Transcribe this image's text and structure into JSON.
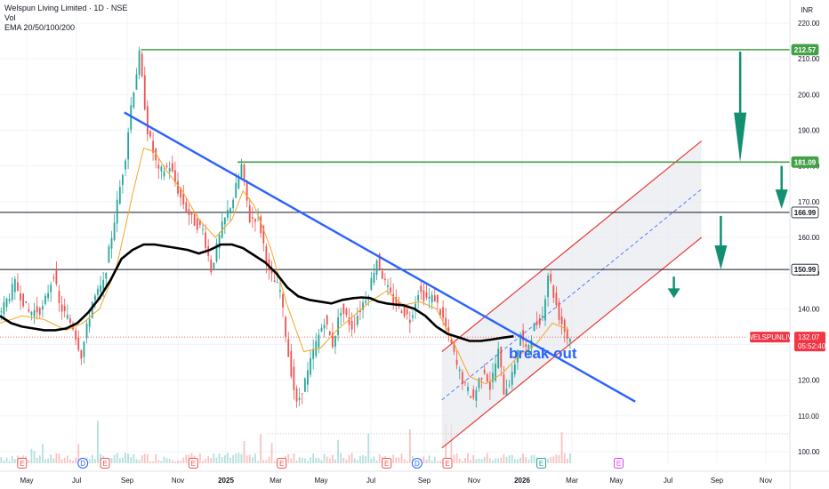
{
  "legend": {
    "title": "Welspun Living Limited · 1D · NSE",
    "volume": "Vol",
    "ema": "EMA 20/50/100/200"
  },
  "currency": "INR",
  "colors": {
    "up": "#26a69a",
    "down": "#ef5350",
    "trendline": "#2962ff",
    "resistance": "#43a047",
    "support_line": "#131722",
    "channel": "#e53935",
    "channel_fill": "#e9ebf0",
    "ema_fast": "#f5a623",
    "ema_slow": "#000000",
    "arrow": "#138f72",
    "last_price_bg": "#f23645"
  },
  "symbol_tag": {
    "label": "WELSPUNLIV",
    "price": "132.07",
    "countdown": "05:52:40"
  },
  "annotation": "break out",
  "chart_data": {
    "type": "candlestick",
    "y_axis": {
      "ylim": [
        97,
        223
      ],
      "ticks": [
        100,
        110,
        120,
        130,
        140,
        150,
        160,
        170,
        180,
        190,
        200,
        210,
        220
      ],
      "tick_labels": [
        "100.00",
        "110.00",
        "120.00",
        "130.00",
        "140.00",
        "150.00",
        "160.00",
        "170.00",
        "180.00",
        "190.00",
        "200.00",
        "210.00",
        "220.00"
      ]
    },
    "x_axis": {
      "labels": [
        "May",
        "Jul",
        "Sep",
        "Nov",
        "2025",
        "Mar",
        "May",
        "Jul",
        "Sep",
        "Nov",
        "2026",
        "Mar",
        "May",
        "Jul",
        "Sep",
        "Nov"
      ],
      "bold": [
        "2025",
        "2026"
      ]
    },
    "price_path": [
      [
        0,
        138
      ],
      [
        6,
        147
      ],
      [
        11,
        139
      ],
      [
        16,
        140
      ],
      [
        20,
        150
      ],
      [
        22,
        141
      ],
      [
        27,
        135
      ],
      [
        30,
        127
      ],
      [
        34,
        142
      ],
      [
        38,
        147
      ],
      [
        42,
        165
      ],
      [
        46,
        183
      ],
      [
        48,
        197
      ],
      [
        51,
        211
      ],
      [
        54,
        190
      ],
      [
        58,
        178
      ],
      [
        62,
        180
      ],
      [
        66,
        171
      ],
      [
        70,
        165
      ],
      [
        74,
        162
      ],
      [
        77,
        151
      ],
      [
        81,
        163
      ],
      [
        85,
        171
      ],
      [
        88,
        180
      ],
      [
        91,
        165
      ],
      [
        94,
        166
      ],
      [
        98,
        150
      ],
      [
        102,
        145
      ],
      [
        105,
        127
      ],
      [
        108,
        113
      ],
      [
        112,
        122
      ],
      [
        114,
        128
      ],
      [
        118,
        137
      ],
      [
        121,
        130
      ],
      [
        124,
        140
      ],
      [
        128,
        135
      ],
      [
        131,
        140
      ],
      [
        134,
        145
      ],
      [
        137,
        154
      ],
      [
        140,
        147
      ],
      [
        143,
        142
      ],
      [
        146,
        140
      ],
      [
        149,
        137
      ],
      [
        152,
        145
      ],
      [
        155,
        143
      ],
      [
        158,
        143
      ],
      [
        161,
        137
      ],
      [
        164,
        130
      ],
      [
        166,
        124
      ],
      [
        169,
        118
      ],
      [
        172,
        115
      ],
      [
        174,
        120
      ],
      [
        176,
        123
      ],
      [
        178,
        118
      ],
      [
        181,
        128
      ],
      [
        183,
        117
      ],
      [
        186,
        121
      ],
      [
        189,
        133
      ],
      [
        191,
        128
      ],
      [
        194,
        135
      ],
      [
        197,
        138
      ],
      [
        199,
        150
      ],
      [
        201,
        144
      ],
      [
        203,
        138
      ],
      [
        206,
        132
      ]
    ],
    "ema_fast_path": [
      [
        0,
        136
      ],
      [
        8,
        138
      ],
      [
        16,
        137
      ],
      [
        24,
        134
      ],
      [
        30,
        136
      ],
      [
        36,
        140
      ],
      [
        42,
        151
      ],
      [
        48,
        172
      ],
      [
        52,
        185
      ],
      [
        56,
        184
      ],
      [
        60,
        179
      ],
      [
        66,
        173
      ],
      [
        72,
        165
      ],
      [
        78,
        160
      ],
      [
        84,
        165
      ],
      [
        88,
        173
      ],
      [
        92,
        169
      ],
      [
        98,
        157
      ],
      [
        104,
        141
      ],
      [
        110,
        128
      ],
      [
        116,
        129
      ],
      [
        122,
        134
      ],
      [
        128,
        138
      ],
      [
        134,
        142
      ],
      [
        140,
        145
      ],
      [
        146,
        141
      ],
      [
        152,
        142
      ],
      [
        158,
        140
      ],
      [
        164,
        131
      ],
      [
        170,
        121
      ],
      [
        176,
        119
      ],
      [
        182,
        122
      ],
      [
        188,
        127
      ],
      [
        194,
        130
      ],
      [
        200,
        136
      ],
      [
        206,
        134
      ]
    ],
    "ema_slow_path": [
      [
        0,
        138
      ],
      [
        4,
        136
      ],
      [
        8,
        135
      ],
      [
        12,
        134.5
      ],
      [
        16,
        134
      ],
      [
        20,
        134
      ],
      [
        24,
        134.5
      ],
      [
        28,
        136
      ],
      [
        32,
        139
      ],
      [
        36,
        143
      ],
      [
        40,
        148
      ],
      [
        44,
        154
      ],
      [
        48,
        156.5
      ],
      [
        52,
        158
      ],
      [
        56,
        158
      ],
      [
        60,
        157.5
      ],
      [
        64,
        157
      ],
      [
        68,
        156.5
      ],
      [
        72,
        155.5
      ],
      [
        76,
        156.5
      ],
      [
        80,
        158
      ],
      [
        84,
        158
      ],
      [
        88,
        157
      ],
      [
        92,
        155
      ],
      [
        96,
        153
      ],
      [
        100,
        150
      ],
      [
        104,
        146
      ],
      [
        108,
        143.5
      ],
      [
        112,
        142.5
      ],
      [
        116,
        142
      ],
      [
        120,
        141.5
      ],
      [
        124,
        142.5
      ],
      [
        128,
        143
      ],
      [
        131,
        143.2
      ],
      [
        134,
        143
      ],
      [
        137,
        142
      ],
      [
        140,
        141.5
      ],
      [
        143,
        141.2
      ],
      [
        146,
        141
      ],
      [
        150,
        140
      ],
      [
        154,
        138
      ],
      [
        158,
        135
      ],
      [
        162,
        133
      ],
      [
        166,
        132
      ],
      [
        170,
        131
      ],
      [
        174,
        131
      ],
      [
        178,
        131.4
      ],
      [
        182,
        131.9
      ],
      [
        186,
        132.3
      ]
    ],
    "ema_slow_start_bar": 0,
    "levels": [
      {
        "value": 212.57,
        "label": "212.57",
        "kind": "resistance",
        "start_bar": 51
      },
      {
        "value": 181.09,
        "label": "181.09",
        "kind": "resistance",
        "start_bar": 86
      },
      {
        "value": 166.99,
        "label": "166.99",
        "kind": "support",
        "start_bar": 0
      },
      {
        "value": 150.99,
        "label": "150.99",
        "kind": "support",
        "start_bar": 0
      }
    ],
    "last_price": 132.07,
    "trendline": {
      "from": [
        45,
        195
      ],
      "to": [
        230,
        114
      ]
    },
    "channel": {
      "lower": {
        "from": [
          160,
          101
        ],
        "to": [
          254,
          160
        ]
      },
      "upper": {
        "from": [
          160,
          128
        ],
        "to": [
          254,
          187
        ]
      }
    },
    "arrows": [
      {
        "x": 268,
        "from": 212,
        "to": 181
      },
      {
        "x": 283,
        "from": 180,
        "to": 168
      },
      {
        "x": 261,
        "from": 166,
        "to": 151
      },
      {
        "x": 244,
        "from": 149,
        "to": 143
      }
    ],
    "events": [
      {
        "bar": 8,
        "kind": "E"
      },
      {
        "bar": 30,
        "kind": "D"
      },
      {
        "bar": 38,
        "kind": "E"
      },
      {
        "bar": 70,
        "kind": "E"
      },
      {
        "bar": 102,
        "kind": "E"
      },
      {
        "bar": 140,
        "kind": "E"
      },
      {
        "bar": 151,
        "kind": "D"
      },
      {
        "bar": 162,
        "kind": "E"
      },
      {
        "bar": 196,
        "kind": "E"
      },
      {
        "bar": 224,
        "kind": "E"
      }
    ]
  }
}
